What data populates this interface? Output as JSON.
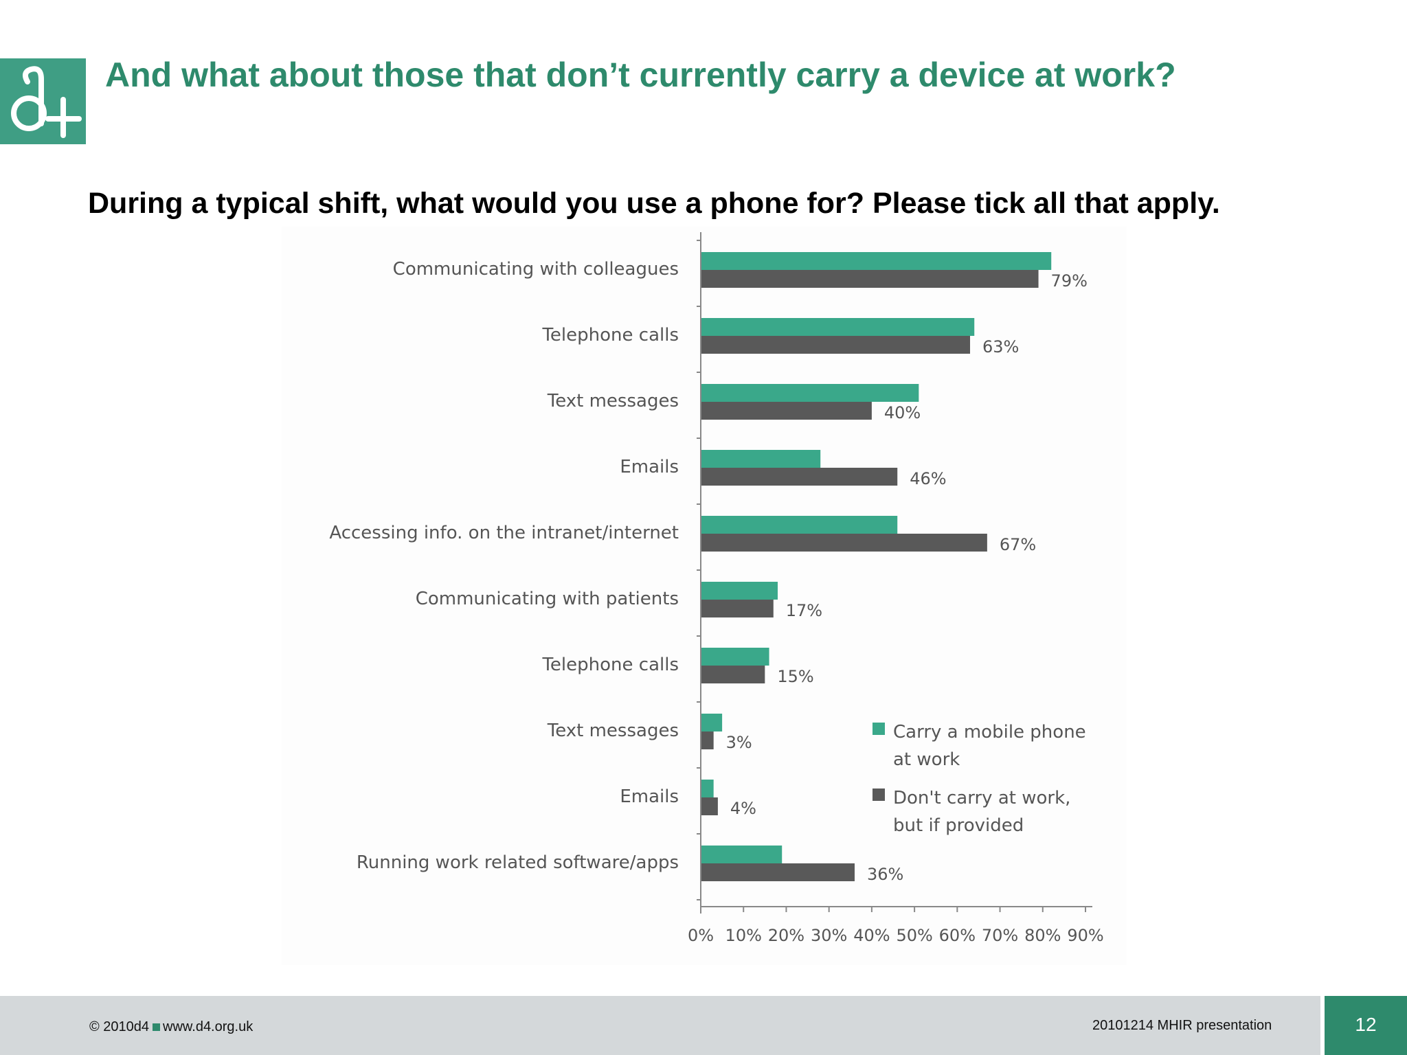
{
  "slide": {
    "title": "And what about those that don’t currently carry a device at work?",
    "question": "During a typical shift, what would you use a phone for?  Please tick all that apply.",
    "logo_text": "d+"
  },
  "footer": {
    "copyright": "© 2010d4",
    "website": "www.d4.org.uk",
    "presentation": "20101214 MHIR presentation",
    "page_number": "12"
  },
  "colors": {
    "brand_green": "#2e8a6c",
    "series_carry": "#3aa88a",
    "series_dont_carry": "#595959"
  },
  "chart_data": {
    "type": "bar",
    "orientation": "horizontal",
    "categories": [
      "Communicating with colleagues",
      "Telephone calls",
      "Text messages",
      "Emails",
      "Accessing info. on the intranet/internet",
      "Communicating with patients",
      "Telephone calls",
      "Text messages",
      "Emails",
      "Running work related software/apps"
    ],
    "series": [
      {
        "name": "Carry a mobile phone at work",
        "values": [
          82,
          64,
          51,
          28,
          46,
          18,
          16,
          5,
          3,
          19
        ]
      },
      {
        "name": "Don't carry at work, but if provided",
        "values": [
          79,
          63,
          40,
          46,
          67,
          17,
          15,
          3,
          4,
          36
        ]
      }
    ],
    "data_labels": [
      "79%",
      "63%",
      "40%",
      "46%",
      "67%",
      "17%",
      "15%",
      "3%",
      "4%",
      "36%"
    ],
    "x_ticks": [
      "0%",
      "10%",
      "20%",
      "30%",
      "40%",
      "50%",
      "60%",
      "70%",
      "80%",
      "90%"
    ],
    "xlim": [
      0,
      90
    ],
    "legend": {
      "placement": "bottom-right",
      "entries": [
        {
          "line1": "Carry a mobile phone",
          "line2": "at work"
        },
        {
          "line1": "Don't carry at work,",
          "line2": "but if provided"
        }
      ]
    },
    "title": "",
    "xlabel": "",
    "ylabel": ""
  }
}
